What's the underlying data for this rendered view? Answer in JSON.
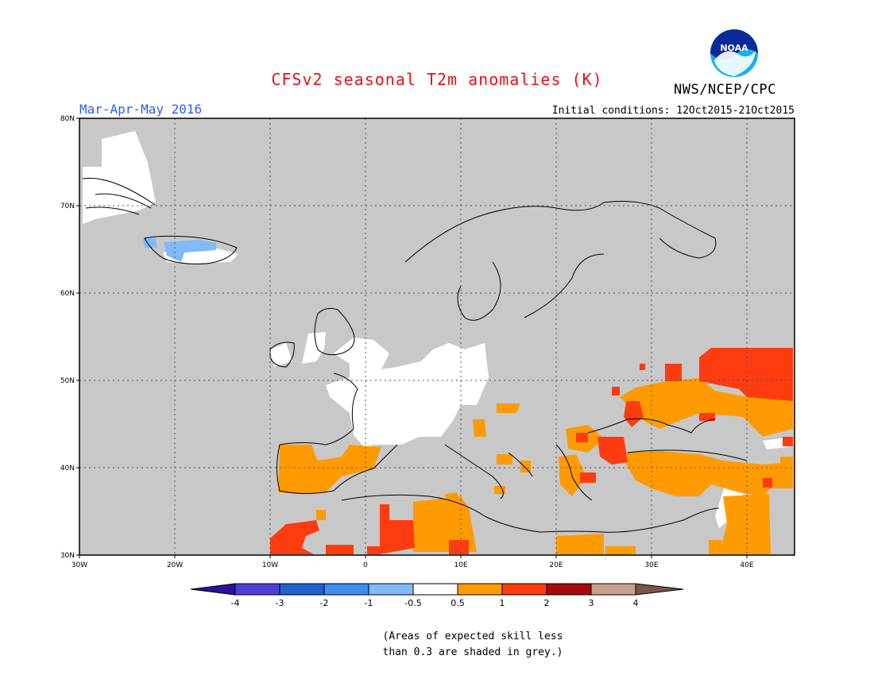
{
  "header": {
    "title": "CFSv2 seasonal T2m anomalies (K)",
    "organization": "NWS/NCEP/CPC",
    "period": "Mar-Apr-May 2016",
    "initial_conditions": "Initial conditions: 12Oct2015-21Oct2015",
    "logo_text": "NOAA"
  },
  "map": {
    "lat_range": [
      30,
      80
    ],
    "lon_range": [
      -30,
      45
    ],
    "lat_labels": [
      "80N",
      "70N",
      "60N",
      "50N",
      "40N",
      "30N"
    ],
    "lon_labels": [
      "30W",
      "20W",
      "10W",
      "0",
      "10E",
      "20E",
      "30E",
      "40E"
    ],
    "no_skill_color": "#c8c8c8"
  },
  "colorbar": {
    "labels": [
      "-4",
      "-3",
      "-2",
      "-1",
      "-0.5",
      "0.5",
      "1",
      "2",
      "3",
      "4"
    ],
    "colors": [
      "#2a10a0",
      "#4a40d8",
      "#2060d0",
      "#3c8ef0",
      "#80baf8",
      "#ffffff",
      "#ff9b00",
      "#ff3c0f",
      "#a80a0a",
      "#c8a090",
      "#7a5548"
    ]
  },
  "footnote": {
    "line1": "(Areas of expected skill less",
    "line2": "than 0.3 are shaded in grey.)"
  }
}
